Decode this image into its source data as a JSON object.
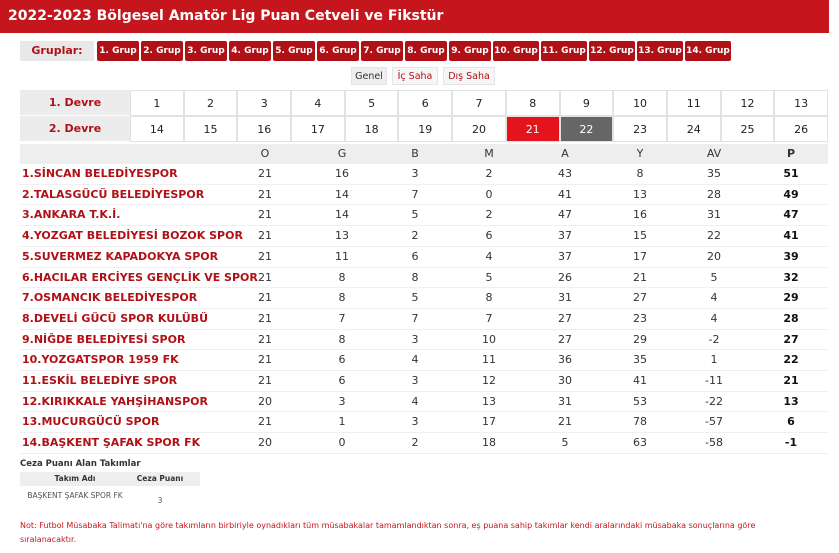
{
  "header": {
    "title": "2022-2023 Bölgesel Amatör Lig Puan Cetveli ve Fikstür"
  },
  "groups": {
    "label": "Gruplar:",
    "items": [
      "1. Grup",
      "2. Grup",
      "3. Grup",
      "4. Grup",
      "5. Grup",
      "6. Grup",
      "7. Grup",
      "8. Grup",
      "9. Grup",
      "10. Grup",
      "11. Grup",
      "12. Grup",
      "13. Grup",
      "14. Grup"
    ]
  },
  "tabs": [
    "Genel",
    "İç Saha",
    "Dış Saha"
  ],
  "weeks": {
    "rows": [
      {
        "label": "1. Devre",
        "items": [
          1,
          2,
          3,
          4,
          5,
          6,
          7,
          8,
          9,
          10,
          11,
          12,
          13
        ]
      },
      {
        "label": "2. Devre",
        "items": [
          14,
          15,
          16,
          17,
          18,
          19,
          20,
          21,
          22,
          23,
          24,
          25,
          26
        ]
      }
    ],
    "selected_week": 21,
    "current_week": 22
  },
  "table": {
    "columns": [
      "O",
      "G",
      "B",
      "M",
      "A",
      "Y",
      "AV",
      "P"
    ],
    "rows": [
      [
        "1.SİNCAN BELEDİYESPOR",
        21,
        16,
        3,
        2,
        43,
        8,
        35,
        51
      ],
      [
        "2.TALASGÜCÜ BELEDİYESPOR",
        21,
        14,
        7,
        0,
        41,
        13,
        28,
        49
      ],
      [
        "3.ANKARA T.K.İ.",
        21,
        14,
        5,
        2,
        47,
        16,
        31,
        47
      ],
      [
        "4.YOZGAT BELEDİYESİ BOZOK SPOR",
        21,
        13,
        2,
        6,
        37,
        15,
        22,
        41
      ],
      [
        "5.SUVERMEZ KAPADOKYA SPOR",
        21,
        11,
        6,
        4,
        37,
        17,
        20,
        39
      ],
      [
        "6.HACILAR ERCİYES GENÇLİK VE SPOR",
        21,
        8,
        8,
        5,
        26,
        21,
        5,
        32
      ],
      [
        "7.OSMANCIK BELEDİYESPOR",
        21,
        8,
        5,
        8,
        31,
        27,
        4,
        29
      ],
      [
        "8.DEVELİ GÜCÜ SPOR KULÜBÜ",
        21,
        7,
        7,
        7,
        27,
        23,
        4,
        28
      ],
      [
        "9.NİĞDE BELEDİYESİ SPOR",
        21,
        8,
        3,
        10,
        27,
        29,
        -2,
        27
      ],
      [
        "10.YOZGATSPOR 1959 FK",
        21,
        6,
        4,
        11,
        36,
        35,
        1,
        22
      ],
      [
        "11.ESKİL BELEDİYE SPOR",
        21,
        6,
        3,
        12,
        30,
        41,
        -11,
        21
      ],
      [
        "12.KIRIKKALE YAHŞİHANSPOR",
        20,
        3,
        4,
        13,
        31,
        53,
        -22,
        13
      ],
      [
        "13.MUCURGÜCÜ SPOR",
        21,
        1,
        3,
        17,
        21,
        78,
        -57,
        6
      ],
      [
        "14.BAŞKENT ŞAFAK SPOR FK",
        20,
        0,
        2,
        18,
        5,
        63,
        -58,
        -1
      ]
    ]
  },
  "penalty": {
    "title": "Ceza Puanı Alan Takımlar",
    "columns": [
      "Takım Adı",
      "Ceza Puanı"
    ],
    "rows": [
      [
        "BAŞKENT ŞAFAK SPOR FK",
        3
      ]
    ]
  },
  "note": "Not: Futbol Müsabaka Talimatı'na göre takımların birbiriyle oynadıkları tüm müsabakalar tamamlandıktan sonra, eş puana sahip takımlar kendi aralarındaki müsabaka sonuçlarına göre sıralanacaktır."
}
